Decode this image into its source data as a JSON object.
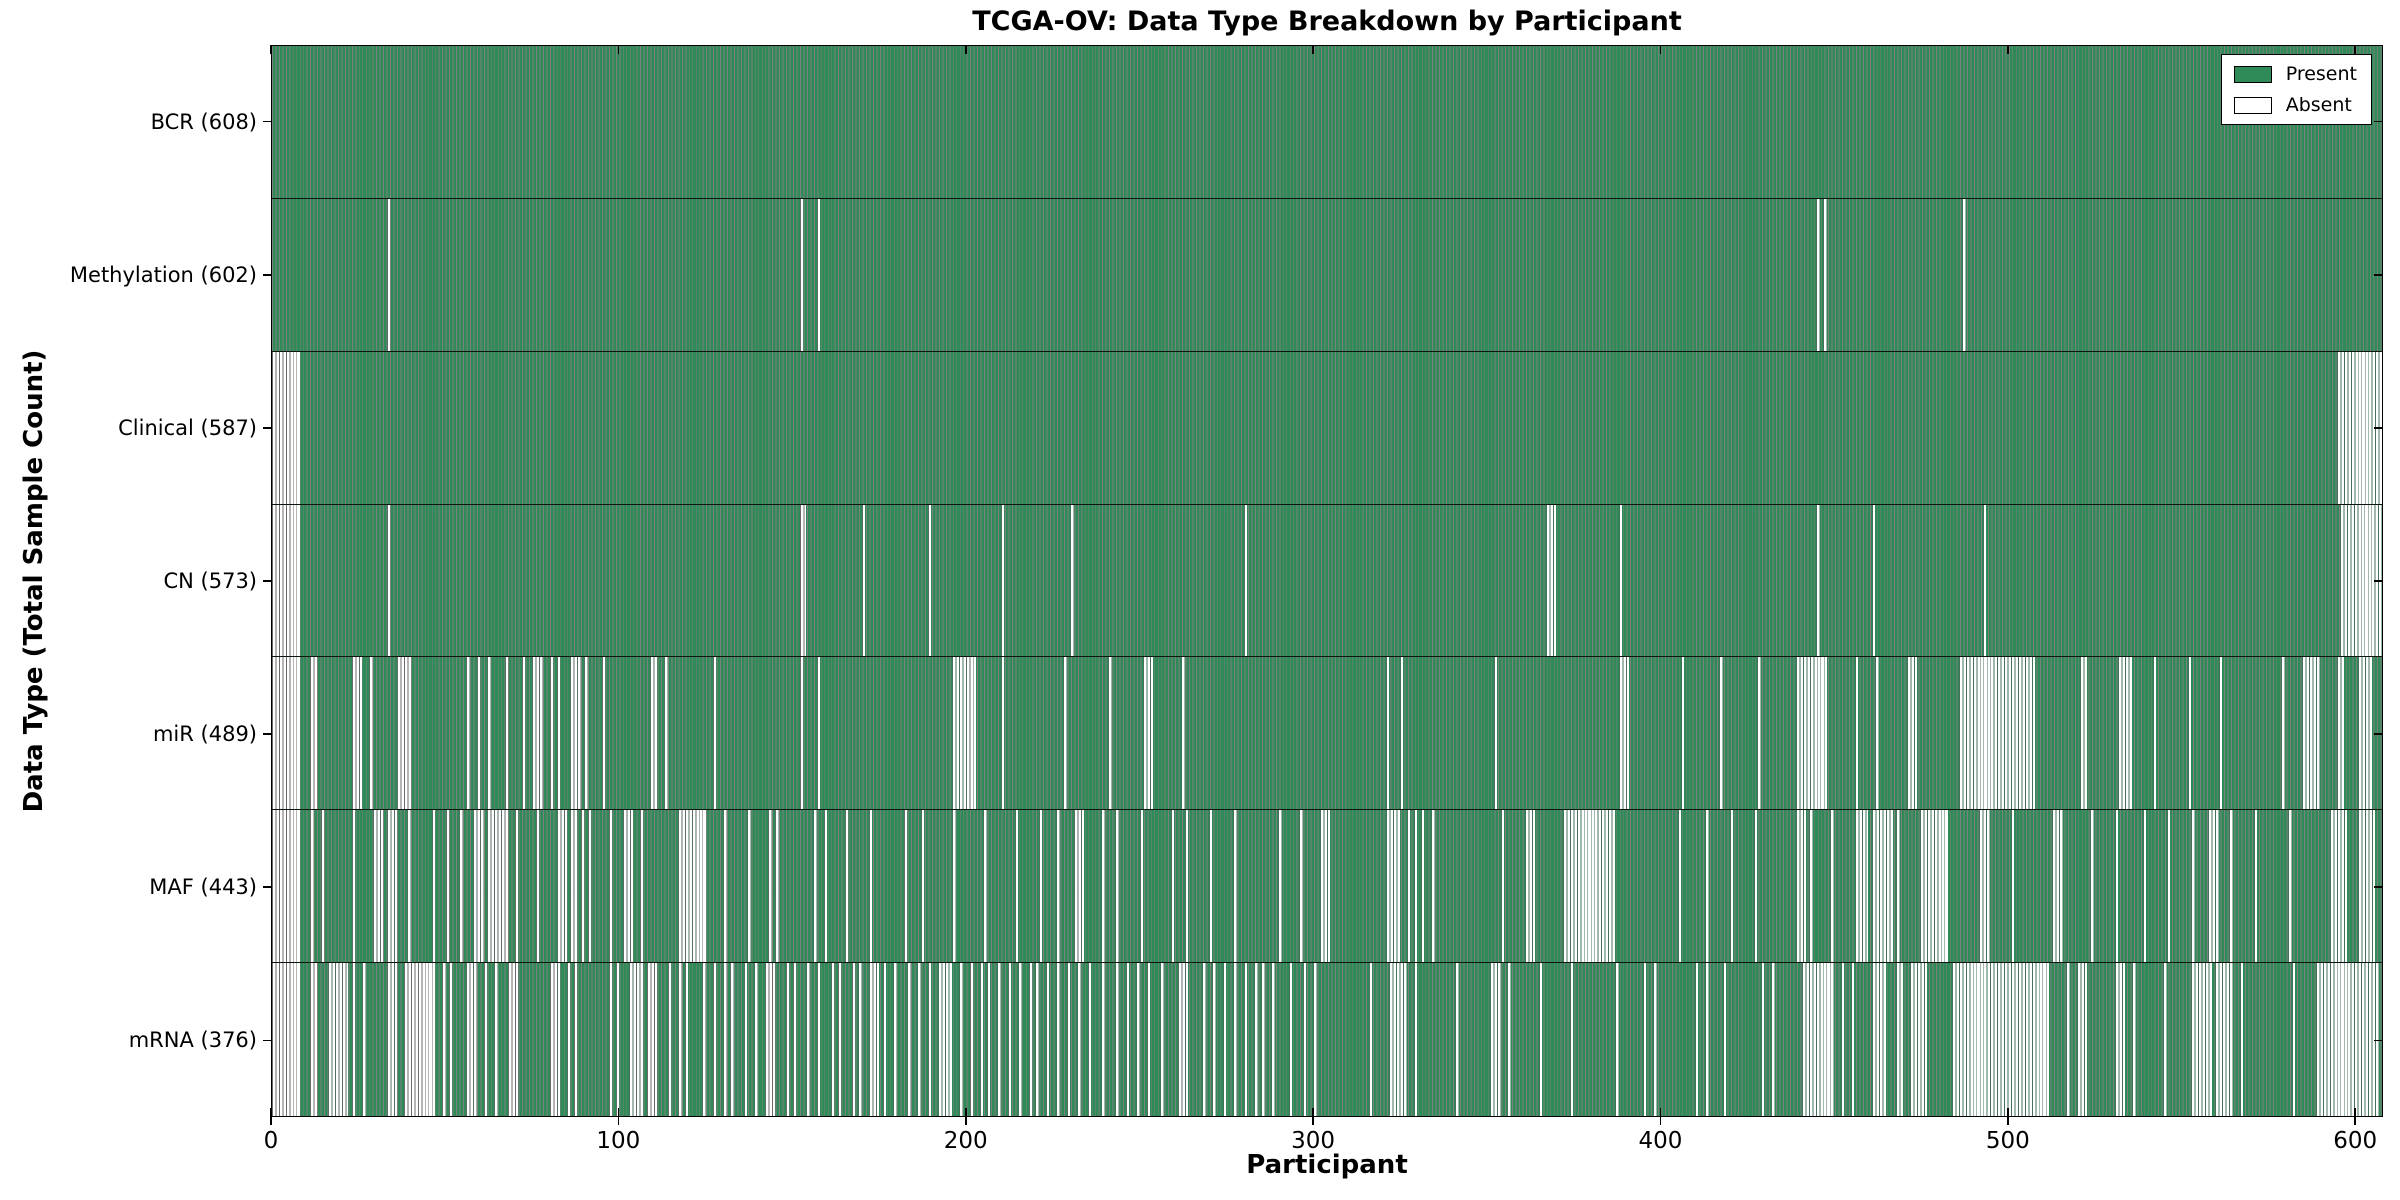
{
  "chart_data": {
    "type": "heatmap",
    "title": "TCGA-OV: Data Type Breakdown by Participant",
    "xlabel": "Participant",
    "ylabel": "Data Type (Total Sample Count)",
    "n_participants": 608,
    "xlim": [
      0,
      608
    ],
    "x_ticks": [
      0,
      100,
      200,
      300,
      400,
      500,
      600
    ],
    "grid": "row-separators",
    "legend_position": "upper right",
    "legend": [
      {
        "label": "Present",
        "color": "#2e8b57"
      },
      {
        "label": "Absent",
        "color": "#ffffff"
      }
    ],
    "colors": {
      "present": "#2e8b57",
      "absent": "#ffffff",
      "bar_edge": "#000000"
    },
    "rows": [
      {
        "key": "BCR",
        "label": "BCR (608)",
        "present_count": 608,
        "absent_intervals": []
      },
      {
        "key": "Methylation",
        "label": "Methylation (602)",
        "present_count": 602,
        "absent_intervals": [
          [
            33,
            33
          ],
          [
            152,
            152
          ],
          [
            157,
            157
          ],
          [
            445,
            445
          ],
          [
            447,
            447
          ],
          [
            487,
            487
          ]
        ]
      },
      {
        "key": "Clinical",
        "label": "Clinical (587)",
        "present_count": 587,
        "absent_intervals": [
          [
            0,
            7
          ],
          [
            595,
            607
          ]
        ]
      },
      {
        "key": "CN",
        "label": "CN (573)",
        "present_count": 573,
        "absent_intervals": [
          [
            0,
            7
          ],
          [
            33,
            33
          ],
          [
            152,
            153
          ],
          [
            170,
            170
          ],
          [
            189,
            189
          ],
          [
            210,
            210
          ],
          [
            230,
            230
          ],
          [
            280,
            280
          ],
          [
            367,
            369
          ],
          [
            388,
            388
          ],
          [
            445,
            445
          ],
          [
            461,
            461
          ],
          [
            493,
            493
          ],
          [
            596,
            607
          ]
        ]
      },
      {
        "key": "miR",
        "label": "miR (489)",
        "present_count": 489,
        "absent_intervals": [
          [
            0,
            7
          ],
          [
            11,
            12
          ],
          [
            23,
            25
          ],
          [
            28,
            28
          ],
          [
            36,
            39
          ],
          [
            56,
            56
          ],
          [
            59,
            59
          ],
          [
            62,
            62
          ],
          [
            67,
            67
          ],
          [
            72,
            72
          ],
          [
            75,
            77
          ],
          [
            80,
            80
          ],
          [
            82,
            82
          ],
          [
            86,
            88
          ],
          [
            90,
            90
          ],
          [
            95,
            95
          ],
          [
            109,
            110
          ],
          [
            113,
            113
          ],
          [
            127,
            127
          ],
          [
            152,
            152
          ],
          [
            157,
            157
          ],
          [
            196,
            202
          ],
          [
            210,
            210
          ],
          [
            228,
            228
          ],
          [
            241,
            241
          ],
          [
            251,
            253
          ],
          [
            262,
            262
          ],
          [
            321,
            321
          ],
          [
            325,
            325
          ],
          [
            352,
            352
          ],
          [
            388,
            390
          ],
          [
            406,
            406
          ],
          [
            417,
            417
          ],
          [
            428,
            428
          ],
          [
            439,
            447
          ],
          [
            456,
            456
          ],
          [
            462,
            462
          ],
          [
            471,
            473
          ],
          [
            486,
            507
          ],
          [
            521,
            522
          ],
          [
            532,
            535
          ],
          [
            542,
            542
          ],
          [
            552,
            552
          ],
          [
            561,
            561
          ],
          [
            579,
            579
          ],
          [
            585,
            589
          ],
          [
            595,
            596
          ],
          [
            601,
            604
          ]
        ]
      },
      {
        "key": "MAF",
        "label": "MAF (443)",
        "present_count": 443,
        "absent_intervals": [
          [
            0,
            7
          ],
          [
            11,
            11
          ],
          [
            14,
            14
          ],
          [
            23,
            23
          ],
          [
            29,
            31
          ],
          [
            33,
            35
          ],
          [
            39,
            39
          ],
          [
            46,
            46
          ],
          [
            50,
            50
          ],
          [
            54,
            54
          ],
          [
            58,
            60
          ],
          [
            62,
            67
          ],
          [
            70,
            70
          ],
          [
            76,
            76
          ],
          [
            82,
            84
          ],
          [
            86,
            87
          ],
          [
            89,
            89
          ],
          [
            91,
            91
          ],
          [
            97,
            97
          ],
          [
            101,
            103
          ],
          [
            106,
            106
          ],
          [
            117,
            124
          ],
          [
            130,
            130
          ],
          [
            137,
            137
          ],
          [
            143,
            143
          ],
          [
            145,
            145
          ],
          [
            156,
            156
          ],
          [
            159,
            159
          ],
          [
            165,
            165
          ],
          [
            172,
            172
          ],
          [
            182,
            182
          ],
          [
            187,
            187
          ],
          [
            196,
            196
          ],
          [
            205,
            205
          ],
          [
            214,
            214
          ],
          [
            221,
            221
          ],
          [
            226,
            226
          ],
          [
            231,
            233
          ],
          [
            239,
            239
          ],
          [
            243,
            243
          ],
          [
            250,
            250
          ],
          [
            259,
            259
          ],
          [
            263,
            263
          ],
          [
            270,
            270
          ],
          [
            277,
            277
          ],
          [
            290,
            290
          ],
          [
            296,
            296
          ],
          [
            302,
            304
          ],
          [
            321,
            324
          ],
          [
            327,
            327
          ],
          [
            329,
            329
          ],
          [
            331,
            331
          ],
          [
            334,
            334
          ],
          [
            354,
            354
          ],
          [
            361,
            363
          ],
          [
            372,
            386
          ],
          [
            405,
            405
          ],
          [
            413,
            413
          ],
          [
            420,
            420
          ],
          [
            427,
            427
          ],
          [
            439,
            441
          ],
          [
            443,
            443
          ],
          [
            449,
            449
          ],
          [
            456,
            459
          ],
          [
            461,
            466
          ],
          [
            468,
            468
          ],
          [
            475,
            482
          ],
          [
            492,
            494
          ],
          [
            501,
            501
          ],
          [
            513,
            515
          ],
          [
            524,
            524
          ],
          [
            531,
            531
          ],
          [
            539,
            539
          ],
          [
            546,
            546
          ],
          [
            553,
            553
          ],
          [
            558,
            560
          ],
          [
            564,
            564
          ],
          [
            571,
            571
          ],
          [
            581,
            581
          ],
          [
            593,
            597
          ],
          [
            601,
            605
          ]
        ]
      },
      {
        "key": "mRNA",
        "label": "mRNA (376)",
        "present_count": 376,
        "absent_intervals": [
          [
            0,
            7
          ],
          [
            11,
            12
          ],
          [
            16,
            21
          ],
          [
            23,
            23
          ],
          [
            26,
            26
          ],
          [
            33,
            35
          ],
          [
            38,
            46
          ],
          [
            49,
            49
          ],
          [
            51,
            51
          ],
          [
            56,
            58
          ],
          [
            61,
            61
          ],
          [
            64,
            64
          ],
          [
            68,
            70
          ],
          [
            80,
            82
          ],
          [
            85,
            85
          ],
          [
            87,
            87
          ],
          [
            97,
            97
          ],
          [
            99,
            99
          ],
          [
            103,
            106
          ],
          [
            108,
            110
          ],
          [
            114,
            114
          ],
          [
            117,
            117
          ],
          [
            119,
            119
          ],
          [
            124,
            124
          ],
          [
            127,
            127
          ],
          [
            130,
            130
          ],
          [
            132,
            132
          ],
          [
            136,
            136
          ],
          [
            139,
            139
          ],
          [
            142,
            144
          ],
          [
            148,
            148
          ],
          [
            150,
            150
          ],
          [
            154,
            154
          ],
          [
            157,
            157
          ],
          [
            161,
            161
          ],
          [
            163,
            163
          ],
          [
            167,
            167
          ],
          [
            169,
            169
          ],
          [
            172,
            174
          ],
          [
            176,
            176
          ],
          [
            179,
            179
          ],
          [
            183,
            183
          ],
          [
            186,
            186
          ],
          [
            189,
            189
          ],
          [
            192,
            195
          ],
          [
            198,
            198
          ],
          [
            201,
            201
          ],
          [
            204,
            204
          ],
          [
            206,
            206
          ],
          [
            209,
            209
          ],
          [
            212,
            212
          ],
          [
            215,
            215
          ],
          [
            218,
            218
          ],
          [
            220,
            220
          ],
          [
            223,
            223
          ],
          [
            226,
            226
          ],
          [
            229,
            229
          ],
          [
            232,
            232
          ],
          [
            235,
            235
          ],
          [
            239,
            239
          ],
          [
            243,
            243
          ],
          [
            246,
            246
          ],
          [
            249,
            249
          ],
          [
            252,
            252
          ],
          [
            256,
            256
          ],
          [
            261,
            263
          ],
          [
            268,
            268
          ],
          [
            271,
            271
          ],
          [
            274,
            274
          ],
          [
            277,
            277
          ],
          [
            280,
            280
          ],
          [
            283,
            283
          ],
          [
            285,
            285
          ],
          [
            288,
            288
          ],
          [
            293,
            293
          ],
          [
            297,
            297
          ],
          [
            300,
            300
          ],
          [
            316,
            316
          ],
          [
            322,
            326
          ],
          [
            329,
            329
          ],
          [
            341,
            341
          ],
          [
            351,
            353
          ],
          [
            356,
            356
          ],
          [
            365,
            365
          ],
          [
            374,
            374
          ],
          [
            387,
            387
          ],
          [
            395,
            395
          ],
          [
            398,
            398
          ],
          [
            410,
            410
          ],
          [
            413,
            413
          ],
          [
            418,
            418
          ],
          [
            429,
            429
          ],
          [
            432,
            432
          ],
          [
            441,
            449
          ],
          [
            452,
            452
          ],
          [
            455,
            455
          ],
          [
            461,
            464
          ],
          [
            468,
            469
          ],
          [
            472,
            476
          ],
          [
            484,
            511
          ],
          [
            517,
            517
          ],
          [
            520,
            522
          ],
          [
            531,
            533
          ],
          [
            536,
            536
          ],
          [
            545,
            545
          ],
          [
            553,
            558
          ],
          [
            560,
            564
          ],
          [
            567,
            567
          ],
          [
            582,
            582
          ],
          [
            589,
            606
          ]
        ]
      }
    ]
  }
}
